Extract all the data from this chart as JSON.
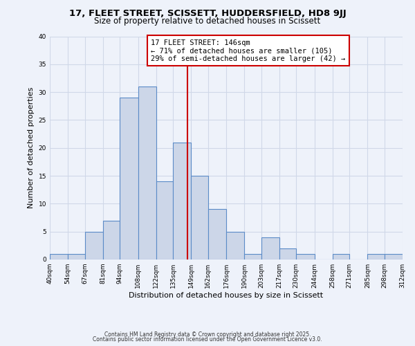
{
  "title_line1": "17, FLEET STREET, SCISSETT, HUDDERSFIELD, HD8 9JJ",
  "title_line2": "Size of property relative to detached houses in Scissett",
  "xlabel": "Distribution of detached houses by size in Scissett",
  "ylabel": "Number of detached properties",
  "bin_edges": [
    40,
    54,
    67,
    81,
    94,
    108,
    122,
    135,
    149,
    162,
    176,
    190,
    203,
    217,
    230,
    244,
    258,
    271,
    285,
    298,
    312
  ],
  "bin_labels": [
    "40sqm",
    "54sqm",
    "67sqm",
    "81sqm",
    "94sqm",
    "108sqm",
    "122sqm",
    "135sqm",
    "149sqm",
    "162sqm",
    "176sqm",
    "190sqm",
    "203sqm",
    "217sqm",
    "230sqm",
    "244sqm",
    "258sqm",
    "271sqm",
    "285sqm",
    "298sqm",
    "312sqm"
  ],
  "counts": [
    1,
    1,
    5,
    7,
    29,
    31,
    14,
    21,
    15,
    9,
    5,
    1,
    4,
    2,
    1,
    0,
    1,
    0,
    1,
    1
  ],
  "bar_facecolor": "#ccd6e8",
  "bar_edgecolor": "#5b8bc7",
  "vline_x": 146,
  "vline_color": "#cc0000",
  "annotation_line1": "17 FLEET STREET: 146sqm",
  "annotation_line2": "← 71% of detached houses are smaller (105)",
  "annotation_line3": "29% of semi-detached houses are larger (42) →",
  "annotation_box_edgecolor": "#cc0000",
  "annotation_box_facecolor": "#ffffff",
  "ylim": [
    0,
    40
  ],
  "yticks": [
    0,
    5,
    10,
    15,
    20,
    25,
    30,
    35,
    40
  ],
  "footer_line1": "Contains HM Land Registry data © Crown copyright and database right 2025.",
  "footer_line2": "Contains public sector information licensed under the Open Government Licence v3.0.",
  "background_color": "#eef2fa",
  "grid_color": "#d0d8e8",
  "title_fontsize": 9.5,
  "subtitle_fontsize": 8.5,
  "axis_label_fontsize": 8,
  "tick_fontsize": 6.5,
  "footer_fontsize": 5.5,
  "annotation_fontsize": 7.5
}
